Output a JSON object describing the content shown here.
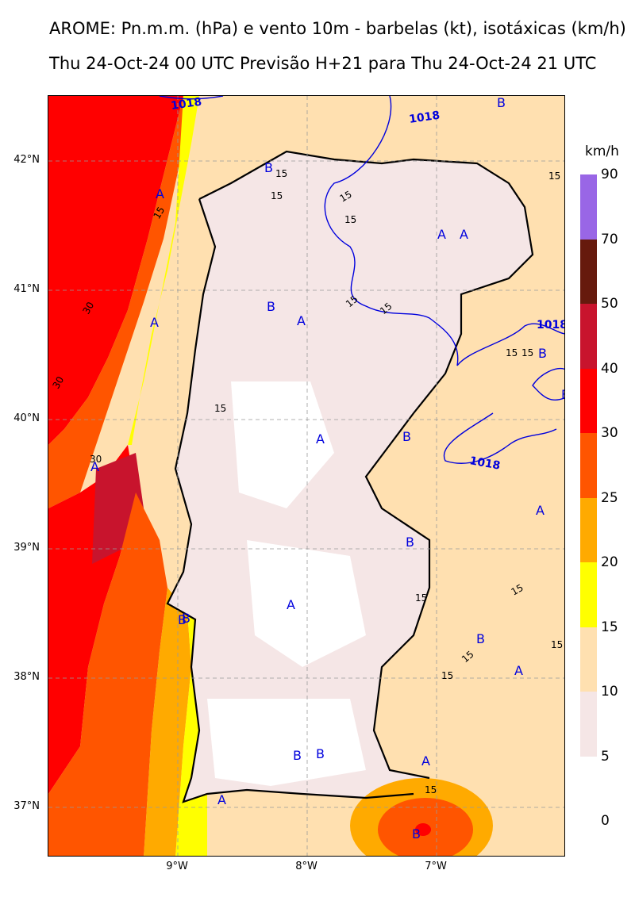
{
  "title_line1": "AROME: Pn.m.m. (hPa) e vento 10m - barbelas (kt), isotáxicas (km/h)",
  "title_line2": "Thu 24-Oct-24 00 UTC Previsão H+21 para Thu 24-Oct-24 21 UTC",
  "lat_labels": [
    "42°N",
    "41°N",
    "40°N",
    "39°N",
    "38°N",
    "37°N"
  ],
  "lon_labels": [
    "9°W",
    "8°W",
    "7°W"
  ],
  "legend": {
    "unit": "km/h",
    "ticks": [
      "90",
      "70",
      "50",
      "40",
      "30",
      "25",
      "20",
      "15",
      "10",
      "5",
      "0"
    ],
    "bands": [
      {
        "range": "70-90",
        "color": "#9966e6"
      },
      {
        "range": "50-70",
        "color": "#661a0d"
      },
      {
        "range": "40-50",
        "color": "#c8142d"
      },
      {
        "range": "30-40",
        "color": "#ff0000"
      },
      {
        "range": "25-30",
        "color": "#ff5500"
      },
      {
        "range": "20-25",
        "color": "#ffaa00"
      },
      {
        "range": "15-20",
        "color": "#ffff00"
      },
      {
        "range": "10-15",
        "color": "#ffe0b0"
      },
      {
        "range": "5-10",
        "color": "#f5e6e6"
      }
    ]
  },
  "isobar_labels": [
    "1018",
    "1018",
    "1018",
    "1018"
  ],
  "isotach_labels": [
    "15",
    "15",
    "15",
    "15",
    "15",
    "15",
    "15",
    "15",
    "15",
    "15",
    "15",
    "15",
    "15",
    "15",
    "15",
    "15",
    "15",
    "30",
    "30",
    "30"
  ],
  "pressure_markers": [
    "B",
    "A",
    "B",
    "A",
    "A",
    "B",
    "A",
    "A",
    "B",
    "A",
    "B",
    "A",
    "B",
    "B",
    "A",
    "A",
    "B",
    "B",
    "A",
    "B",
    "B",
    "A",
    "A",
    "B",
    "B"
  ],
  "colors": {
    "isobar": "#0000dd",
    "marker": "#0000dd"
  }
}
